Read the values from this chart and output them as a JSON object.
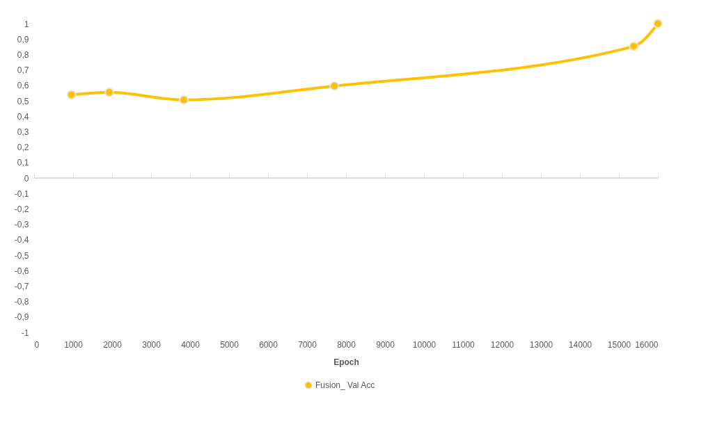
{
  "chart_data": {
    "type": "line",
    "xlabel": "Epoch",
    "x": [
      960,
      1930,
      3840,
      7700,
      15380,
      16000
    ],
    "series": [
      {
        "name": "Fusion_ Val Acc",
        "color": "#ffc000",
        "values": [
          0.539,
          0.555,
          0.506,
          0.596,
          0.853,
          1.0
        ]
      }
    ],
    "xlim": [
      0,
      16000
    ],
    "xticks": [
      0,
      1000,
      2000,
      3000,
      4000,
      5000,
      6000,
      7000,
      8000,
      9000,
      10000,
      11000,
      12000,
      13000,
      14000,
      15000,
      16000
    ],
    "ylim": [
      -1,
      1
    ],
    "yticks": [
      {
        "value": -1,
        "label": "-1"
      },
      {
        "value": -0.9,
        "label": "-0,9"
      },
      {
        "value": -0.8,
        "label": "-0,8"
      },
      {
        "value": -0.7,
        "label": "-0,7"
      },
      {
        "value": -0.6,
        "label": "-0,6"
      },
      {
        "value": -0.5,
        "label": "-0,5"
      },
      {
        "value": -0.4,
        "label": "-0,4"
      },
      {
        "value": -0.3,
        "label": "-0,3"
      },
      {
        "value": -0.2,
        "label": "-0,2"
      },
      {
        "value": -0.1,
        "label": "-0,1"
      },
      {
        "value": 0,
        "label": "0"
      },
      {
        "value": 0.1,
        "label": "0,1"
      },
      {
        "value": 0.2,
        "label": "0,2"
      },
      {
        "value": 0.3,
        "label": "0,3"
      },
      {
        "value": 0.4,
        "label": "0,4"
      },
      {
        "value": 0.5,
        "label": "0,5"
      },
      {
        "value": 0.6,
        "label": "0,6"
      },
      {
        "value": 0.7,
        "label": "0,7"
      },
      {
        "value": 0.8,
        "label": "0,8"
      },
      {
        "value": 0.9,
        "label": "0,9"
      },
      {
        "value": 1,
        "label": "1"
      }
    ],
    "ref_lines": [
      {
        "axis": "y",
        "value": 0,
        "color": "#d9dde3"
      }
    ],
    "grid": false,
    "legend": "bottom",
    "marker": "circle",
    "line_style": "solid"
  }
}
